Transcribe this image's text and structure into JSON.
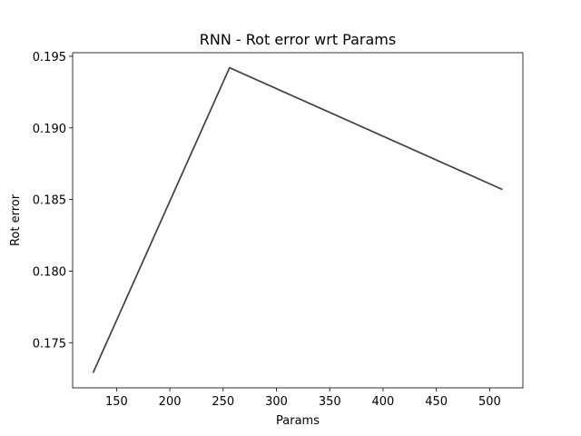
{
  "chart_data": {
    "type": "line",
    "title": "RNN - Rot error wrt Params",
    "xlabel": "Params",
    "ylabel": "Rot error",
    "xlim": [
      108.8,
      531.2
    ],
    "ylim": [
      0.17185,
      0.19525
    ],
    "xticks": [
      150,
      200,
      250,
      300,
      350,
      400,
      450,
      500
    ],
    "yticks": [
      0.175,
      0.18,
      0.185,
      0.19,
      0.195
    ],
    "ytick_labels": [
      "0.175",
      "0.180",
      "0.185",
      "0.190",
      "0.195"
    ],
    "grid": false,
    "series": [
      {
        "color": "#404040",
        "x": [
          128,
          256,
          512
        ],
        "y": [
          0.1729,
          0.1942,
          0.1857
        ]
      }
    ]
  }
}
